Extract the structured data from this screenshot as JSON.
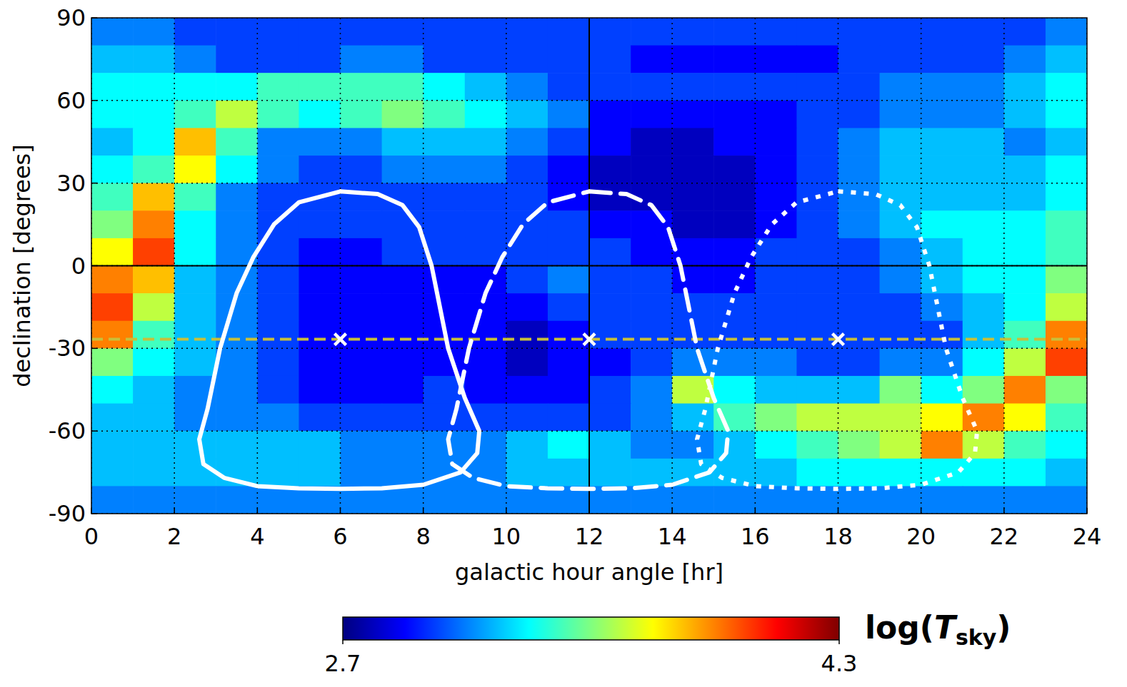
{
  "chart_data": {
    "type": "heatmap",
    "x_label": "galactic hour angle [hr]",
    "y_label": "declination [degrees]",
    "xlim": [
      0,
      24
    ],
    "ylim": [
      -90,
      90
    ],
    "xticks": [
      0,
      2,
      4,
      6,
      8,
      10,
      12,
      14,
      16,
      18,
      20,
      22,
      24
    ],
    "yticks": [
      -90,
      -60,
      -30,
      0,
      30,
      60,
      90
    ],
    "grid": true,
    "x_bins": [
      0,
      1,
      2,
      3,
      4,
      5,
      6,
      7,
      8,
      9,
      10,
      11,
      12,
      13,
      14,
      15,
      16,
      17,
      18,
      19,
      20,
      21,
      22,
      23,
      24
    ],
    "y_bins": [
      90,
      80,
      70,
      60,
      50,
      40,
      30,
      20,
      10,
      0,
      -10,
      -20,
      -30,
      -40,
      -50,
      -60,
      -70,
      -80,
      -90
    ],
    "cells": [
      [
        3.1,
        3.1,
        3.0,
        3.0,
        3.0,
        3.0,
        3.0,
        3.0,
        3.0,
        3.0,
        3.0,
        3.0,
        3.0,
        3.0,
        3.0,
        3.0,
        3.0,
        3.0,
        3.0,
        3.0,
        3.0,
        3.0,
        3.0,
        3.1
      ],
      [
        3.2,
        3.2,
        3.1,
        3.0,
        3.0,
        3.0,
        3.1,
        3.1,
        3.0,
        3.0,
        3.0,
        3.0,
        3.0,
        2.9,
        2.9,
        2.9,
        2.9,
        2.9,
        3.0,
        3.0,
        3.0,
        3.0,
        3.1,
        3.2
      ],
      [
        3.3,
        3.3,
        3.3,
        3.3,
        3.4,
        3.4,
        3.4,
        3.4,
        3.3,
        3.2,
        3.1,
        3.0,
        3.0,
        3.0,
        3.0,
        3.0,
        3.0,
        3.0,
        3.0,
        3.1,
        3.1,
        3.1,
        3.2,
        3.3
      ],
      [
        3.3,
        3.3,
        3.4,
        3.6,
        3.4,
        3.3,
        3.4,
        3.5,
        3.4,
        3.3,
        3.2,
        3.1,
        2.9,
        2.9,
        2.9,
        2.9,
        2.9,
        3.0,
        3.0,
        3.1,
        3.1,
        3.1,
        3.2,
        3.3
      ],
      [
        3.2,
        3.3,
        3.8,
        3.4,
        3.1,
        3.1,
        3.1,
        3.2,
        3.2,
        3.2,
        3.1,
        3.0,
        2.9,
        2.8,
        2.8,
        2.9,
        2.9,
        3.0,
        3.1,
        3.2,
        3.2,
        3.2,
        3.1,
        3.2
      ],
      [
        3.3,
        3.4,
        3.7,
        3.3,
        3.1,
        3.0,
        3.0,
        3.1,
        3.1,
        3.1,
        3.0,
        2.9,
        2.8,
        2.8,
        2.8,
        2.8,
        2.9,
        3.0,
        3.1,
        3.2,
        3.2,
        3.2,
        3.2,
        3.3
      ],
      [
        3.4,
        3.8,
        3.4,
        3.1,
        3.0,
        3.0,
        3.0,
        3.0,
        3.0,
        3.0,
        3.0,
        2.9,
        2.8,
        2.8,
        2.8,
        2.8,
        2.9,
        3.0,
        3.1,
        3.2,
        3.2,
        3.2,
        3.2,
        3.3
      ],
      [
        3.5,
        3.9,
        3.3,
        3.1,
        3.0,
        3.0,
        3.0,
        3.0,
        3.0,
        3.0,
        3.0,
        3.0,
        2.9,
        2.9,
        2.8,
        2.8,
        2.9,
        3.0,
        3.1,
        3.2,
        3.3,
        3.3,
        3.3,
        3.4
      ],
      [
        3.7,
        4.0,
        3.3,
        3.1,
        3.0,
        2.9,
        2.9,
        3.0,
        3.0,
        3.0,
        3.0,
        3.0,
        3.0,
        2.9,
        2.9,
        2.9,
        3.0,
        3.0,
        3.0,
        3.1,
        3.2,
        3.3,
        3.3,
        3.4
      ],
      [
        3.9,
        3.8,
        3.2,
        3.1,
        3.0,
        2.9,
        2.9,
        2.9,
        2.9,
        2.9,
        3.0,
        3.1,
        3.0,
        3.0,
        2.9,
        2.9,
        3.0,
        3.0,
        3.0,
        3.1,
        3.2,
        3.3,
        3.3,
        3.5
      ],
      [
        4.0,
        3.6,
        3.2,
        3.1,
        3.0,
        2.9,
        2.9,
        2.9,
        2.9,
        2.9,
        2.9,
        3.0,
        3.0,
        3.0,
        3.0,
        3.0,
        3.0,
        3.0,
        3.0,
        3.0,
        3.1,
        3.2,
        3.3,
        3.6
      ],
      [
        3.9,
        3.4,
        3.2,
        3.1,
        3.0,
        2.9,
        2.9,
        2.9,
        2.9,
        2.9,
        2.8,
        2.9,
        3.0,
        3.0,
        3.0,
        3.0,
        3.0,
        3.0,
        3.0,
        3.0,
        3.0,
        3.2,
        3.4,
        3.9
      ],
      [
        3.5,
        3.3,
        3.2,
        3.1,
        3.0,
        2.9,
        2.9,
        2.9,
        2.9,
        2.9,
        2.8,
        2.9,
        2.9,
        3.0,
        3.1,
        3.1,
        3.1,
        3.0,
        3.0,
        3.1,
        3.1,
        3.3,
        3.6,
        4.0
      ],
      [
        3.3,
        3.2,
        3.1,
        3.1,
        3.0,
        2.9,
        2.9,
        2.9,
        3.0,
        2.9,
        2.9,
        2.9,
        3.0,
        3.1,
        3.6,
        3.3,
        3.2,
        3.2,
        3.2,
        3.5,
        3.3,
        3.5,
        3.9,
        3.5
      ],
      [
        3.2,
        3.2,
        3.1,
        3.1,
        3.1,
        3.0,
        3.0,
        3.0,
        3.0,
        3.0,
        3.0,
        3.0,
        3.0,
        3.1,
        3.2,
        3.4,
        3.5,
        3.6,
        3.6,
        3.6,
        3.7,
        3.9,
        3.7,
        3.4
      ],
      [
        3.2,
        3.2,
        3.2,
        3.2,
        3.2,
        3.2,
        3.1,
        3.1,
        3.1,
        3.1,
        3.2,
        3.3,
        3.2,
        3.1,
        3.1,
        3.2,
        3.3,
        3.4,
        3.5,
        3.6,
        3.9,
        3.6,
        3.4,
        3.3
      ],
      [
        3.2,
        3.2,
        3.2,
        3.2,
        3.2,
        3.2,
        3.1,
        3.1,
        3.1,
        3.1,
        3.2,
        3.2,
        3.2,
        3.2,
        3.2,
        3.2,
        3.2,
        3.3,
        3.3,
        3.3,
        3.3,
        3.3,
        3.3,
        3.2
      ],
      [
        3.1,
        3.1,
        3.1,
        3.1,
        3.1,
        3.1,
        3.1,
        3.1,
        3.1,
        3.1,
        3.1,
        3.1,
        3.1,
        3.1,
        3.1,
        3.1,
        3.1,
        3.1,
        3.1,
        3.1,
        3.1,
        3.1,
        3.1,
        3.1
      ]
    ],
    "colorbar": {
      "range": [
        2.7,
        4.3
      ],
      "ticks": [
        2.7,
        4.3
      ]
    },
    "colorbar_label": {
      "prefix": "log(",
      "symbol": "T",
      "subscript": "sky",
      "suffix": ")"
    },
    "reference_lines": [
      {
        "x": 12,
        "color": "#000000",
        "line_style": "solid"
      },
      {
        "y": 0,
        "color": "#000000",
        "line_style": "solid"
      },
      {
        "y": -26.7,
        "color": "#c8c03a",
        "line_style": "dashed"
      }
    ],
    "contours": [
      {
        "color": "#ffffff",
        "line_style": "solid",
        "x": [
          6,
          6.9,
          7.5,
          7.9,
          8.2,
          8.6,
          9.0,
          9.35,
          9.3,
          8.9,
          8,
          7,
          6,
          5,
          4,
          3.2,
          2.7,
          2.6,
          2.8,
          3.1,
          3.5,
          3.9,
          4.4,
          5,
          6
        ],
        "y": [
          27,
          26,
          22,
          14,
          0,
          -30,
          -48,
          -60,
          -68,
          -75,
          -79.5,
          -80.8,
          -81,
          -80.8,
          -80,
          -77,
          -72,
          -63,
          -52,
          -30,
          -10,
          3,
          15,
          23,
          27
        ]
      },
      {
        "color": "#ffffff",
        "line_style": "dashed",
        "x": [
          12,
          12.9,
          13.5,
          13.9,
          14.2,
          14.6,
          15.0,
          15.35,
          15.3,
          14.9,
          14,
          13,
          12,
          11,
          10,
          9.2,
          8.7,
          8.6,
          8.8,
          9.1,
          9.5,
          9.9,
          10.4,
          11,
          12
        ],
        "y": [
          27,
          26,
          22,
          14,
          0,
          -30,
          -48,
          -60,
          -68,
          -75,
          -79.5,
          -80.8,
          -81,
          -80.8,
          -80,
          -77,
          -72,
          -63,
          -52,
          -30,
          -10,
          3,
          15,
          23,
          27
        ]
      },
      {
        "color": "#ffffff",
        "line_style": "dotted",
        "x": [
          18,
          18.9,
          19.5,
          19.9,
          20.2,
          20.6,
          21.0,
          21.35,
          21.3,
          20.9,
          20,
          19,
          18,
          17,
          16,
          15.2,
          14.7,
          14.6,
          14.8,
          15.1,
          15.5,
          15.9,
          16.4,
          17,
          18
        ],
        "y": [
          27,
          26,
          22,
          14,
          0,
          -30,
          -48,
          -60,
          -68,
          -75,
          -79.5,
          -80.8,
          -81,
          -80.8,
          -80,
          -77,
          -72,
          -63,
          -52,
          -30,
          -10,
          3,
          15,
          23,
          27
        ]
      }
    ],
    "markers": {
      "marker": "x",
      "color": "#ffffff",
      "x": [
        6,
        12,
        18
      ],
      "y": [
        -26.7,
        -26.7,
        -26.7
      ]
    }
  }
}
